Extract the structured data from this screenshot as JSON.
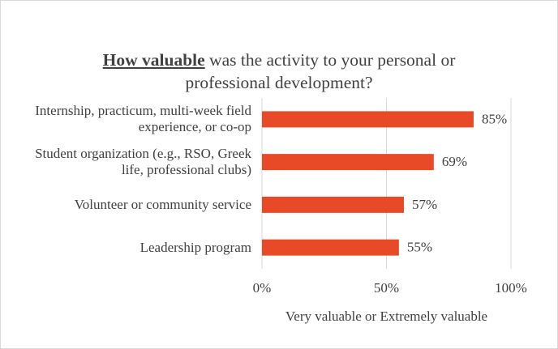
{
  "chart_data": {
    "type": "bar",
    "orientation": "horizontal",
    "title_emphasis": "How valuable",
    "title": "was the activity to your personal or professional development?",
    "categories": [
      "Internship, practicum, multi-week field experience, or co-op",
      "Student organization (e.g., RSO, Greek life, professional clubs)",
      "Volunteer or community service",
      "Leadership program"
    ],
    "values": [
      85,
      69,
      57,
      55
    ],
    "value_labels": [
      "85%",
      "69%",
      "57%",
      "55%"
    ],
    "color": "#e84a27",
    "xlim": [
      0,
      100
    ],
    "xticks": [
      {
        "value": 0,
        "label": "0%"
      },
      {
        "value": 50,
        "label": "50%"
      },
      {
        "value": 100,
        "label": "100%"
      }
    ],
    "xlabel": "Very valuable or Extremely valuable",
    "grid": true
  }
}
